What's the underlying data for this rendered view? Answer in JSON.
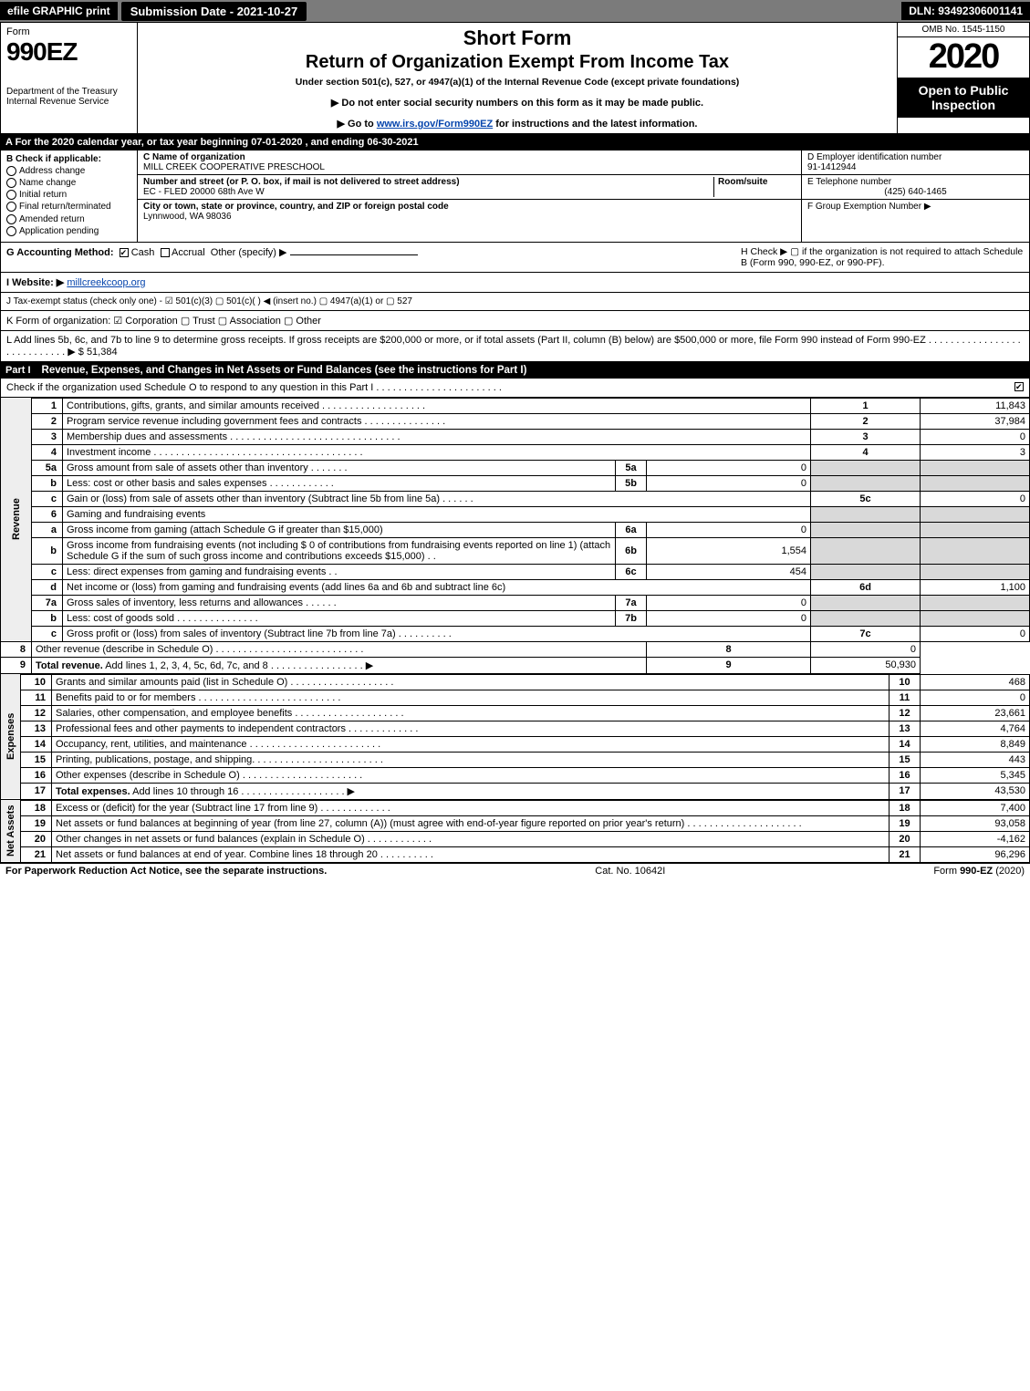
{
  "topbar": {
    "efile": "efile GRAPHIC print",
    "submission": "Submission Date - 2021-10-27",
    "dln": "DLN: 93492306001141"
  },
  "header": {
    "form_word": "Form",
    "form_number": "990EZ",
    "dept1": "Department of the Treasury",
    "dept2": "Internal Revenue Service",
    "short_form": "Short Form",
    "title": "Return of Organization Exempt From Income Tax",
    "subtitle": "Under section 501(c), 527, or 4947(a)(1) of the Internal Revenue Code (except private foundations)",
    "warn": "▶ Do not enter social security numbers on this form as it may be made public.",
    "goto_pre": "▶ Go to ",
    "goto_link": "www.irs.gov/Form990EZ",
    "goto_post": " for instructions and the latest information.",
    "omb": "OMB No. 1545-1150",
    "year": "2020",
    "open": "Open to Public Inspection"
  },
  "period": "A For the 2020 calendar year, or tax year beginning 07-01-2020 , and ending 06-30-2021",
  "box_b": {
    "title": "B  Check if applicable:",
    "opts": [
      "Address change",
      "Name change",
      "Initial return",
      "Final return/terminated",
      "Amended return",
      "Application pending"
    ]
  },
  "box_c": {
    "name_lbl": "C Name of organization",
    "name": "MILL CREEK COOPERATIVE PRESCHOOL",
    "addr_lbl": "Number and street (or P. O. box, if mail is not delivered to street address)",
    "room_lbl": "Room/suite",
    "addr": "EC - FLED 20000 68th Ave W",
    "city_lbl": "City or town, state or province, country, and ZIP or foreign postal code",
    "city": "Lynnwood, WA  98036"
  },
  "box_def": {
    "d_lbl": "D Employer identification number",
    "d_val": "91-1412944",
    "e_lbl": "E Telephone number",
    "e_val": "(425) 640-1465",
    "f_lbl": "F Group Exemption Number   ▶"
  },
  "line_g": {
    "label": "G Accounting Method:",
    "cash": "Cash",
    "accrual": "Accrual",
    "other": "Other (specify) ▶",
    "h": "H  Check ▶  ▢  if the organization is not required to attach Schedule B (Form 990, 990-EZ, or 990-PF)."
  },
  "line_i": {
    "label": "I Website: ▶",
    "val": "millcreekcoop.org"
  },
  "line_j": "J Tax-exempt status (check only one) - ☑ 501(c)(3) ▢ 501(c)(  ) ◀ (insert no.) ▢ 4947(a)(1) or ▢ 527",
  "line_k": "K Form of organization:  ☑ Corporation  ▢ Trust  ▢ Association  ▢ Other",
  "line_l": {
    "text": "L Add lines 5b, 6c, and 7b to line 9 to determine gross receipts. If gross receipts are $200,000 or more, or if total assets (Part II, column (B) below) are $500,000 or more, file Form 990 instead of Form 990-EZ  .  .  .  .  .  .  .  .  .  .  .  .  .  .  .  .  .  .  .  .  .  .  .  .  .  .  .  .  ▶ ",
    "val": "$ 51,384"
  },
  "part1": {
    "num": "Part I",
    "title": "Revenue, Expenses, and Changes in Net Assets or Fund Balances (see the instructions for Part I)",
    "check_line": "Check if the organization used Schedule O to respond to any question in this Part I .  .  .  .  .  .  .  .  .  .  .  .  .  .  .  .  .  .  .  .  .  .  .",
    "checked": "☑"
  },
  "sections": {
    "revenue": "Revenue",
    "expenses": "Expenses",
    "netassets": "Net Assets"
  },
  "rows": [
    {
      "n": "1",
      "d": "Contributions, gifts, grants, and similar amounts received  .  .  .  .  .  .  .  .  .  .  .  .  .  .  .  .  .  .  .",
      "rn": "1",
      "v": "11,843"
    },
    {
      "n": "2",
      "d": "Program service revenue including government fees and contracts  .  .  .  .  .  .  .  .  .  .  .  .  .  .  .",
      "rn": "2",
      "v": "37,984"
    },
    {
      "n": "3",
      "d": "Membership dues and assessments  .  .  .  .  .  .  .  .  .  .  .  .  .  .  .  .  .  .  .  .  .  .  .  .  .  .  .  .  .  .  .",
      "rn": "3",
      "v": "0"
    },
    {
      "n": "4",
      "d": "Investment income  .  .  .  .  .  .  .  .  .  .  .  .  .  .  .  .  .  .  .  .  .  .  .  .  .  .  .  .  .  .  .  .  .  .  .  .  .  .",
      "rn": "4",
      "v": "3"
    },
    {
      "n": "5a",
      "d": "Gross amount from sale of assets other than inventory  .  .  .  .  .  .  .",
      "sn": "5a",
      "sv": "0",
      "shade": true
    },
    {
      "n": "b",
      "d": "Less: cost or other basis and sales expenses  .  .  .  .  .  .  .  .  .  .  .  .",
      "sn": "5b",
      "sv": "0",
      "shade": true
    },
    {
      "n": "c",
      "d": "Gain or (loss) from sale of assets other than inventory (Subtract line 5b from line 5a)  .  .  .  .  .  .",
      "rn": "5c",
      "v": "0"
    },
    {
      "n": "6",
      "d": "Gaming and fundraising events",
      "shade": true,
      "noval": true
    },
    {
      "n": "a",
      "d": "Gross income from gaming (attach Schedule G if greater than $15,000)",
      "sn": "6a",
      "sv": "0",
      "shade": true
    },
    {
      "n": "b",
      "d": "Gross income from fundraising events (not including $  0          of contributions from fundraising events reported on line 1) (attach Schedule G if the sum of such gross income and contributions exceeds $15,000)     .   .",
      "sn": "6b",
      "sv": "1,554",
      "shade": true
    },
    {
      "n": "c",
      "d": "Less: direct expenses from gaming and fundraising events     .   .",
      "sn": "6c",
      "sv": "454",
      "shade": true
    },
    {
      "n": "d",
      "d": "Net income or (loss) from gaming and fundraising events (add lines 6a and 6b and subtract line 6c)",
      "rn": "6d",
      "v": "1,100"
    },
    {
      "n": "7a",
      "d": "Gross sales of inventory, less returns and allowances  .  .  .  .  .  .",
      "sn": "7a",
      "sv": "0",
      "shade": true
    },
    {
      "n": "b",
      "d": "Less: cost of goods sold          .  .  .  .  .  .  .  .  .  .  .  .  .  .  .",
      "sn": "7b",
      "sv": "0",
      "shade": true
    },
    {
      "n": "c",
      "d": "Gross profit or (loss) from sales of inventory (Subtract line 7b from line 7a)  .  .  .  .  .  .  .  .  .  .",
      "rn": "7c",
      "v": "0"
    },
    {
      "n": "8",
      "d": "Other revenue (describe in Schedule O)  .  .  .  .  .  .  .  .  .  .  .  .  .  .  .  .  .  .  .  .  .  .  .  .  .  .  .",
      "rn": "8",
      "v": "0"
    },
    {
      "n": "9",
      "d": "Total revenue. Add lines 1, 2, 3, 4, 5c, 6d, 7c, and 8   .  .  .  .  .  .  .  .  .  .  .  .  .  .  .  .  .      ▶",
      "rn": "9",
      "v": "50,930",
      "bold": true
    }
  ],
  "exp_rows": [
    {
      "n": "10",
      "d": "Grants and similar amounts paid (list in Schedule O)  .  .  .  .  .  .  .  .  .  .  .  .  .  .  .  .  .  .  .",
      "rn": "10",
      "v": "468"
    },
    {
      "n": "11",
      "d": "Benefits paid to or for members       .  .  .  .  .  .  .  .  .  .  .  .  .  .  .  .  .  .  .  .  .  .  .  .  .  .",
      "rn": "11",
      "v": "0"
    },
    {
      "n": "12",
      "d": "Salaries, other compensation, and employee benefits .  .  .  .  .  .  .  .  .  .  .  .  .  .  .  .  .  .  .  .",
      "rn": "12",
      "v": "23,661"
    },
    {
      "n": "13",
      "d": "Professional fees and other payments to independent contractors  .  .  .  .  .  .  .  .  .  .  .  .  .",
      "rn": "13",
      "v": "4,764"
    },
    {
      "n": "14",
      "d": "Occupancy, rent, utilities, and maintenance .  .  .  .  .  .  .  .  .  .  .  .  .  .  .  .  .  .  .  .  .  .  .  .",
      "rn": "14",
      "v": "8,849"
    },
    {
      "n": "15",
      "d": "Printing, publications, postage, and shipping.  .  .  .  .  .  .  .  .  .  .  .  .  .  .  .  .  .  .  .  .  .  .  .",
      "rn": "15",
      "v": "443"
    },
    {
      "n": "16",
      "d": "Other expenses (describe in Schedule O)      .  .  .  .  .  .  .  .  .  .  .  .  .  .  .  .  .  .  .  .  .  .",
      "rn": "16",
      "v": "5,345"
    },
    {
      "n": "17",
      "d": "Total expenses. Add lines 10 through 16      .  .  .  .  .  .  .  .  .  .  .  .  .  .  .  .  .  .  .     ▶",
      "rn": "17",
      "v": "43,530",
      "bold": true
    }
  ],
  "na_rows": [
    {
      "n": "18",
      "d": "Excess or (deficit) for the year (Subtract line 17 from line 9)        .  .  .  .  .  .  .  .  .  .  .  .  .",
      "rn": "18",
      "v": "7,400"
    },
    {
      "n": "19",
      "d": "Net assets or fund balances at beginning of year (from line 27, column (A)) (must agree with end-of-year figure reported on prior year's return) .  .  .  .  .  .  .  .  .  .  .  .  .  .  .  .  .  .  .  .  .",
      "rn": "19",
      "v": "93,058"
    },
    {
      "n": "20",
      "d": "Other changes in net assets or fund balances (explain in Schedule O) .  .  .  .  .  .  .  .  .  .  .  .",
      "rn": "20",
      "v": "-4,162"
    },
    {
      "n": "21",
      "d": "Net assets or fund balances at end of year. Combine lines 18 through 20 .  .  .  .  .  .  .  .  .  .",
      "rn": "21",
      "v": "96,296"
    }
  ],
  "footer": {
    "left": "For Paperwork Reduction Act Notice, see the separate instructions.",
    "mid": "Cat. No. 10642I",
    "right_pre": "Form ",
    "right_b": "990-EZ",
    "right_post": " (2020)"
  }
}
